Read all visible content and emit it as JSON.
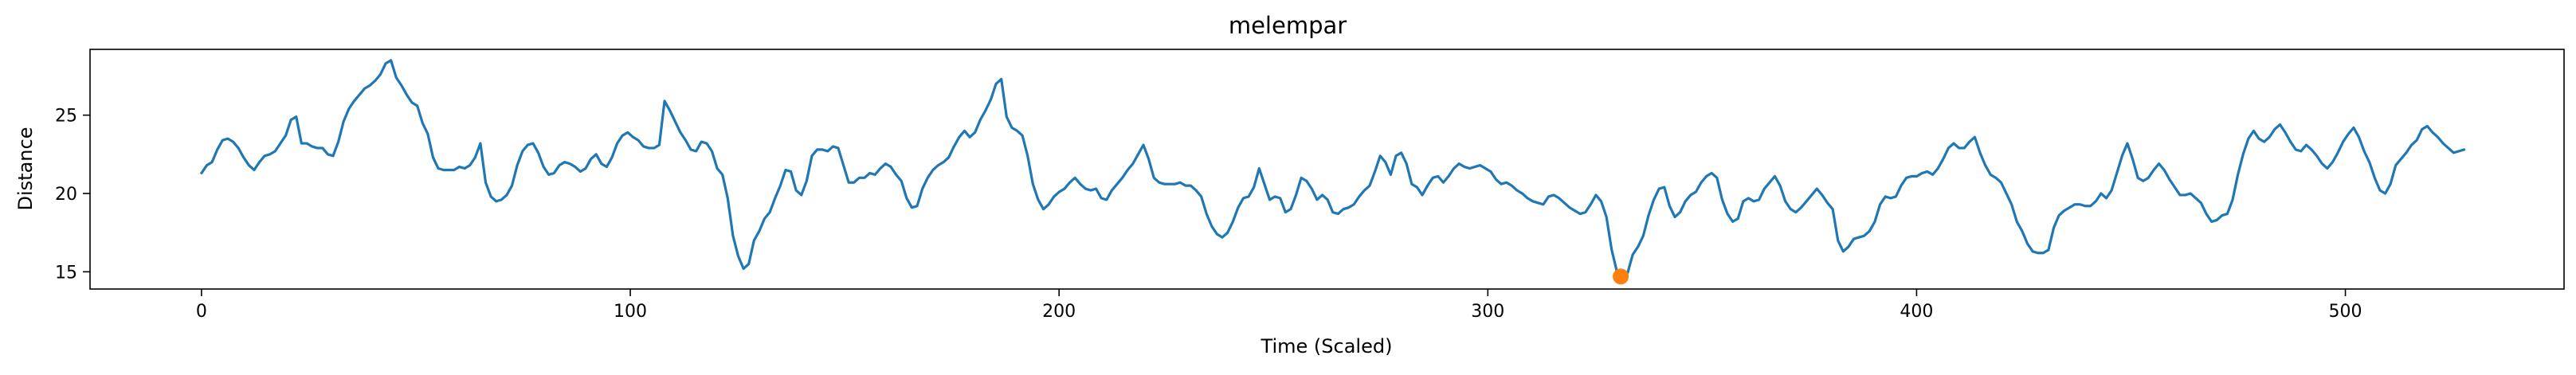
{
  "chart_data": {
    "type": "line",
    "title": "melempar",
    "xlabel": "Time (Scaled)",
    "ylabel": "Distance",
    "xlim": [
      -26,
      551
    ],
    "ylim": [
      13.9,
      29.2
    ],
    "xticks": [
      0,
      100,
      200,
      300,
      400,
      500
    ],
    "yticks": [
      15,
      20,
      25
    ],
    "grid": false,
    "colors": {
      "line": "#1f77b4",
      "marker": "#ff7f0e"
    },
    "series": [
      {
        "values": [
          21.3,
          21.8,
          22.0,
          22.8,
          23.4,
          23.5,
          23.3,
          22.9,
          22.3,
          21.8,
          21.5,
          22.0,
          22.4,
          22.5,
          22.7,
          23.2,
          23.7,
          24.7,
          24.9,
          23.2,
          23.2,
          23.0,
          22.9,
          22.9,
          22.5,
          22.4,
          23.3,
          24.6,
          25.4,
          25.9,
          26.3,
          26.7,
          26.9,
          27.2,
          27.6,
          28.3,
          28.5,
          27.4,
          26.9,
          26.3,
          25.8,
          25.6,
          24.5,
          23.8,
          22.3,
          21.6,
          21.5,
          21.5,
          21.5,
          21.7,
          21.6,
          21.8,
          22.3,
          23.2,
          20.7,
          19.8,
          19.5,
          19.6,
          19.9,
          20.5,
          21.8,
          22.7,
          23.1,
          23.2,
          22.6,
          21.7,
          21.2,
          21.3,
          21.8,
          22.0,
          21.9,
          21.7,
          21.4,
          21.6,
          22.2,
          22.5,
          21.9,
          21.7,
          22.3,
          23.2,
          23.7,
          23.9,
          23.6,
          23.4,
          23.0,
          22.9,
          22.9,
          23.1,
          25.9,
          25.3,
          24.6,
          23.9,
          23.4,
          22.8,
          22.7,
          23.3,
          23.2,
          22.7,
          21.6,
          21.2,
          19.7,
          17.3,
          16.0,
          15.2,
          15.5,
          17.0,
          17.6,
          18.4,
          18.8,
          19.7,
          20.5,
          21.5,
          21.4,
          20.2,
          19.9,
          20.8,
          22.4,
          22.8,
          22.8,
          22.7,
          23.0,
          22.9,
          21.8,
          20.7,
          20.7,
          21.0,
          21.0,
          21.3,
          21.2,
          21.6,
          21.9,
          21.7,
          21.2,
          20.8,
          19.7,
          19.1,
          19.2,
          20.3,
          21.0,
          21.5,
          21.8,
          22.0,
          22.3,
          23.0,
          23.6,
          24.0,
          23.6,
          23.9,
          24.7,
          25.3,
          26.0,
          27.0,
          27.3,
          24.9,
          24.2,
          24.0,
          23.7,
          22.4,
          20.6,
          19.6,
          19.0,
          19.3,
          19.8,
          20.1,
          20.3,
          20.7,
          21.0,
          20.6,
          20.3,
          20.2,
          20.3,
          19.7,
          19.6,
          20.2,
          20.6,
          21.0,
          21.5,
          21.9,
          22.5,
          23.1,
          22.2,
          21.0,
          20.7,
          20.6,
          20.6,
          20.6,
          20.7,
          20.5,
          20.5,
          20.2,
          19.8,
          18.7,
          17.9,
          17.4,
          17.2,
          17.5,
          18.2,
          19.1,
          19.7,
          19.8,
          20.4,
          21.6,
          20.6,
          19.6,
          19.8,
          19.7,
          18.8,
          19.0,
          19.9,
          21.0,
          20.8,
          20.3,
          19.6,
          19.9,
          19.6,
          18.8,
          18.7,
          19.0,
          19.1,
          19.3,
          19.8,
          20.2,
          20.5,
          21.4,
          22.4,
          22.0,
          21.2,
          22.4,
          22.6,
          21.9,
          20.6,
          20.4,
          19.9,
          20.5,
          21.0,
          21.1,
          20.7,
          21.1,
          21.6,
          21.9,
          21.7,
          21.6,
          21.7,
          21.8,
          21.6,
          21.4,
          20.9,
          20.6,
          20.7,
          20.5,
          20.2,
          20.0,
          19.7,
          19.5,
          19.4,
          19.3,
          19.8,
          19.9,
          19.7,
          19.4,
          19.1,
          18.9,
          18.7,
          18.8,
          19.3,
          19.9,
          19.5,
          18.5,
          16.4,
          15.0,
          14.7,
          14.9,
          16.1,
          16.6,
          17.3,
          18.6,
          19.6,
          20.3,
          20.4,
          19.2,
          18.5,
          18.8,
          19.5,
          19.9,
          20.1,
          20.7,
          21.1,
          21.3,
          21.0,
          19.6,
          18.7,
          18.2,
          18.4,
          19.5,
          19.7,
          19.5,
          19.6,
          20.3,
          20.7,
          21.1,
          20.5,
          19.5,
          19.0,
          18.8,
          19.1,
          19.5,
          19.9,
          20.3,
          19.9,
          19.4,
          19.0,
          17.0,
          16.3,
          16.6,
          17.1,
          17.2,
          17.3,
          17.6,
          18.2,
          19.3,
          19.8,
          19.7,
          19.8,
          20.5,
          21.0,
          21.1,
          21.1,
          21.3,
          21.4,
          21.2,
          21.6,
          22.2,
          22.9,
          23.2,
          22.9,
          22.9,
          23.3,
          23.6,
          22.6,
          21.8,
          21.2,
          21.0,
          20.7,
          20.0,
          19.3,
          18.2,
          17.6,
          16.8,
          16.3,
          16.2,
          16.2,
          16.4,
          17.8,
          18.6,
          18.9,
          19.1,
          19.3,
          19.3,
          19.2,
          19.2,
          19.5,
          20.0,
          19.7,
          20.2,
          21.3,
          22.4,
          23.2,
          22.2,
          21.0,
          20.8,
          21.0,
          21.5,
          21.9,
          21.5,
          20.9,
          20.4,
          19.9,
          19.9,
          20.0,
          19.7,
          19.4,
          18.7,
          18.2,
          18.3,
          18.6,
          18.7,
          19.6,
          21.2,
          22.5,
          23.5,
          24.0,
          23.5,
          23.3,
          23.6,
          24.1,
          24.4,
          23.9,
          23.3,
          22.8,
          22.7,
          23.1,
          22.8,
          22.4,
          21.9,
          21.6,
          22.0,
          22.6,
          23.3,
          23.8,
          24.2,
          23.6,
          22.7,
          22.0,
          21.0,
          20.2,
          20.0,
          20.6,
          21.8,
          22.2,
          22.6,
          23.1,
          23.4,
          24.1,
          24.3,
          23.9,
          23.6,
          23.2,
          22.9,
          22.6,
          22.7,
          22.8
        ]
      }
    ],
    "x_step": 1.2272,
    "highlight_point": {
      "x": 331,
      "y": 14.7
    }
  }
}
